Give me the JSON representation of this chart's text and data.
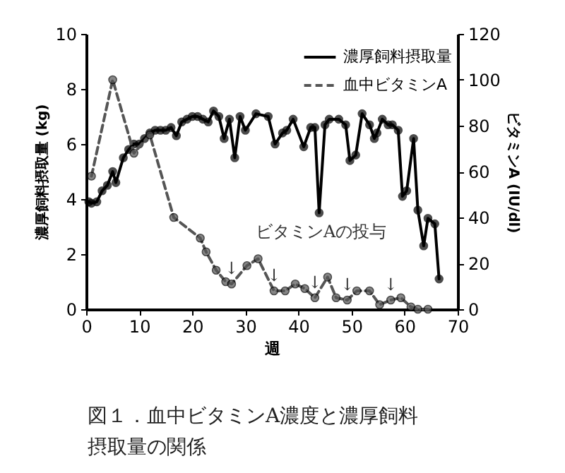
{
  "chart_data": {
    "type": "line",
    "title": "図１．血中ビタミンA濃度と濃厚飼料摂取量の関係",
    "xlabel": "週",
    "ylabel": "濃厚飼料摂取量 (kg)",
    "y2label": "ビタミンA (IU/dl)",
    "xlim": [
      0,
      70
    ],
    "xticks": [
      0,
      10,
      20,
      30,
      40,
      50,
      60,
      70
    ],
    "ylim": [
      0,
      10
    ],
    "yticks": [
      0,
      2,
      4,
      6,
      8,
      10
    ],
    "y2lim": [
      0,
      120
    ],
    "y2ticks": [
      0,
      20,
      40,
      60,
      80,
      100,
      120
    ],
    "legend": "top right",
    "marker": "circle",
    "grid": false,
    "series": [
      {
        "name": "濃厚飼料摂取量",
        "color": "#000000",
        "line_style": "solid",
        "x": [
          0.5,
          1,
          2,
          3,
          4,
          5,
          5.6,
          7,
          8,
          9,
          10,
          11,
          12,
          13,
          14,
          15,
          16,
          17,
          18,
          19,
          20,
          21,
          22,
          23,
          24,
          25,
          26,
          27,
          28,
          29,
          30,
          32,
          34.3,
          35.6,
          37,
          37.8,
          39,
          41,
          42.3,
          43.1,
          43.9,
          45,
          45.8,
          47.6,
          48.9,
          49.7,
          50.8,
          52,
          53.4,
          54.3,
          54.8,
          55.8,
          56.9,
          57.7,
          58.8,
          59.6,
          60.4,
          61.7,
          62.5,
          63.6,
          64.4,
          65.7,
          66.5
        ],
        "values": [
          3.9,
          3.85,
          3.9,
          4.3,
          4.5,
          5.0,
          4.6,
          5.5,
          5.8,
          6.0,
          6.0,
          6.2,
          6.4,
          6.5,
          6.5,
          6.5,
          6.6,
          6.3,
          6.8,
          6.9,
          7.0,
          7.0,
          6.9,
          6.8,
          7.2,
          7.0,
          6.2,
          6.9,
          5.5,
          7.0,
          6.5,
          7.1,
          7.0,
          6.0,
          6.4,
          6.5,
          6.9,
          5.9,
          6.6,
          6.6,
          3.5,
          6.7,
          6.9,
          6.9,
          6.7,
          5.4,
          5.6,
          7.1,
          6.7,
          6.2,
          6.4,
          6.9,
          6.7,
          6.7,
          6.5,
          4.1,
          4.3,
          6.2,
          3.6,
          2.3,
          3.3,
          3.1,
          1.1
        ]
      },
      {
        "name": "血中ビタミンA",
        "color": "#555555",
        "line_style": "dashed",
        "axis": "y2",
        "x": [
          1,
          5,
          9,
          12,
          16.5,
          21.5,
          22.6,
          24.5,
          26.3,
          27.4,
          30.3,
          32.4,
          35.4,
          37.5,
          39.4,
          41.2,
          43.1,
          45.5,
          47.1,
          49.2,
          51,
          53.4,
          55.3,
          57.4,
          59.3,
          61.2,
          62.5,
          64.4
        ],
        "values": [
          58,
          100,
          68,
          76,
          40,
          31,
          25,
          17,
          12,
          11,
          19,
          22,
          8,
          8,
          11,
          9,
          5,
          14,
          5,
          4,
          8,
          8,
          2,
          4,
          5,
          1,
          0,
          0
        ]
      }
    ],
    "annotations": [
      "ビタミンAの投与",
      {
        "text": "↓",
        "x": 27.4,
        "y": 0.92
      },
      {
        "text": "↓",
        "x": 35.4,
        "y": 0.67
      },
      {
        "text": "↓",
        "x": 43.1,
        "y": 0.42
      },
      {
        "text": "↓",
        "x": 49.2,
        "y": 0.33
      },
      {
        "text": "↓",
        "x": 57.4,
        "y": 0.33
      }
    ]
  }
}
